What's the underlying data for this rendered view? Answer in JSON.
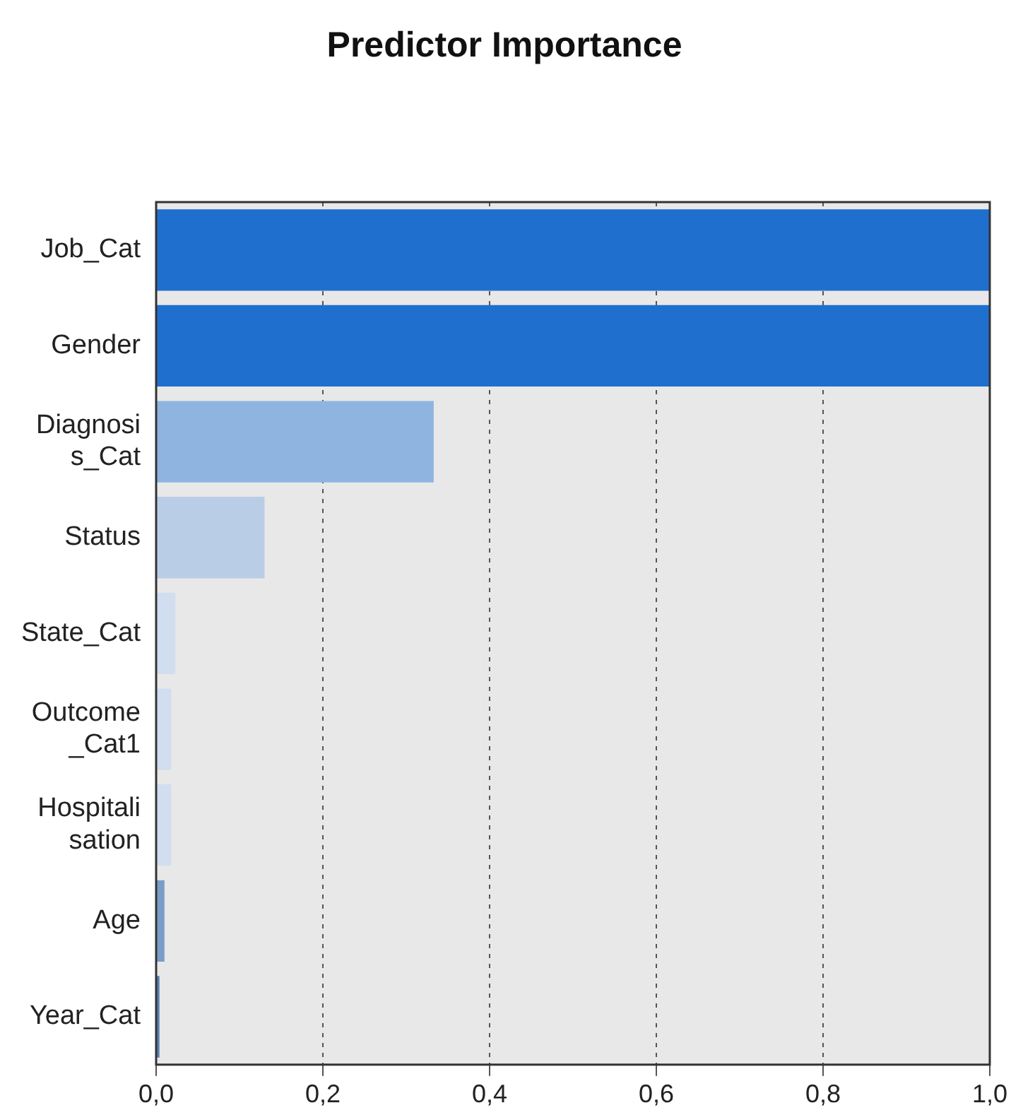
{
  "chart_data": {
    "type": "bar",
    "orientation": "horizontal",
    "title": "Predictor Importance",
    "categories": [
      "Job_Cat",
      "Gender",
      "Diagnosi\ns_Cat",
      "Status",
      "State_Cat",
      "Outcome\n_Cat1",
      "Hospitali\nsation",
      "Age",
      "Year_Cat"
    ],
    "values": [
      1.0,
      1.0,
      0.333,
      0.13,
      0.023,
      0.018,
      0.018,
      0.01,
      0.004
    ],
    "colors": [
      "#1f6fcf",
      "#1f6fcf",
      "#8fb4e0",
      "#b9cde6",
      "#d0def0",
      "#d0def0",
      "#d0def0",
      "#7a9cc8",
      "#5a7fb0"
    ],
    "xlim": [
      0,
      1
    ],
    "xticks": [
      {
        "value": 0,
        "label": "0,0"
      },
      {
        "value": 0.2,
        "label": "0,2"
      },
      {
        "value": 0.4,
        "label": "0,4"
      },
      {
        "value": 0.6,
        "label": "0,6"
      },
      {
        "value": 0.8,
        "label": "0,8"
      },
      {
        "value": 1,
        "label": "1,0"
      }
    ],
    "grid": "x"
  }
}
